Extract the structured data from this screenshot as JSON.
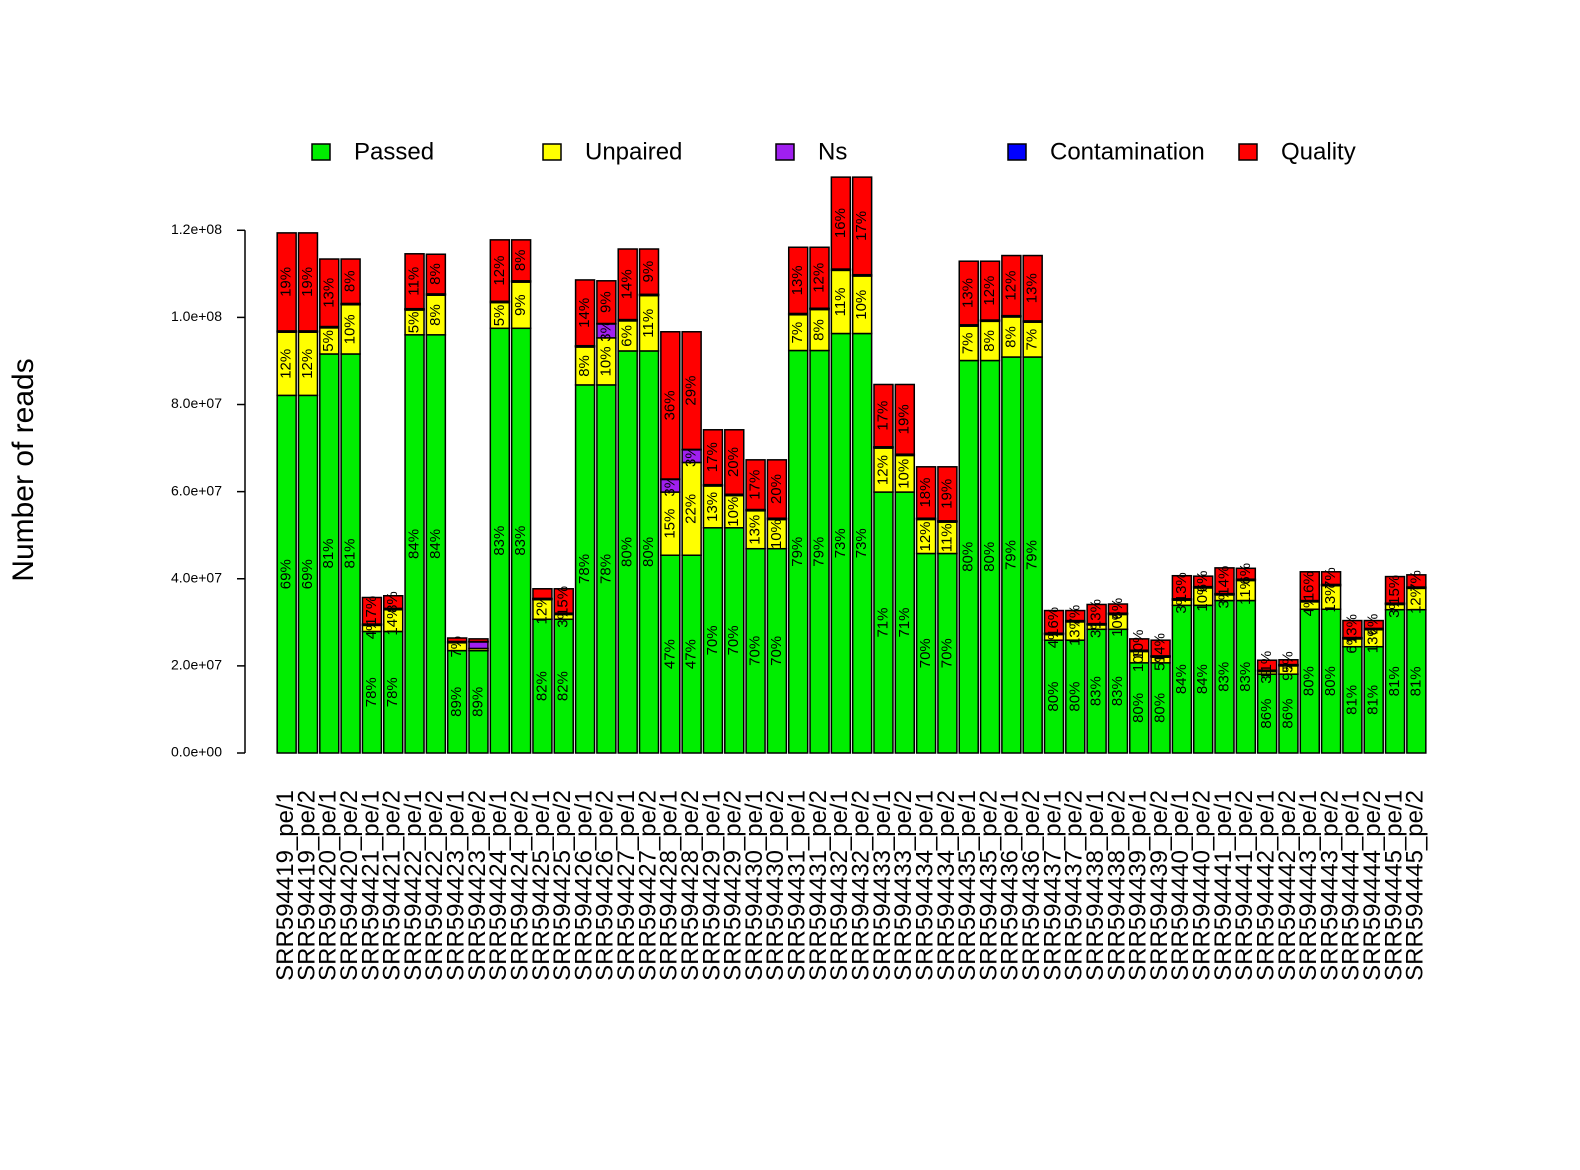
{
  "chart_data": {
    "type": "stacked_bar",
    "y_axis_label": "Number of reads",
    "legend_position": "top",
    "categories": [
      "SRR594419_pe/1",
      "SRR594419_pe/2",
      "SRR594420_pe/1",
      "SRR594420_pe/2",
      "SRR594421_pe/1",
      "SRR594421_pe/2",
      "SRR594422_pe/1",
      "SRR594422_pe/2",
      "SRR594423_pe/1",
      "SRR594423_pe/2",
      "SRR594424_pe/1",
      "SRR594424_pe/2",
      "SRR594425_pe/1",
      "SRR594425_pe/2",
      "SRR594426_pe/1",
      "SRR594426_pe/2",
      "SRR594427_pe/1",
      "SRR594427_pe/2",
      "SRR594428_pe/1",
      "SRR594428_pe/2",
      "SRR594429_pe/1",
      "SRR594429_pe/2",
      "SRR594430_pe/1",
      "SRR594430_pe/2",
      "SRR594431_pe/1",
      "SRR594431_pe/2",
      "SRR594432_pe/1",
      "SRR594432_pe/2",
      "SRR594433_pe/1",
      "SRR594433_pe/2",
      "SRR594434_pe/1",
      "SRR594434_pe/2",
      "SRR594435_pe/1",
      "SRR594435_pe/2",
      "SRR594436_pe/1",
      "SRR594436_pe/2",
      "SRR594437_pe/1",
      "SRR594437_pe/2",
      "SRR594438_pe/1",
      "SRR594438_pe/2",
      "SRR594439_pe/1",
      "SRR594439_pe/2",
      "SRR594440_pe/1",
      "SRR594440_pe/2",
      "SRR594441_pe/1",
      "SRR594441_pe/2",
      "SRR594442_pe/1",
      "SRR594442_pe/2",
      "SRR594443_pe/1",
      "SRR594443_pe/2",
      "SRR594444_pe/1",
      "SRR594444_pe/2",
      "SRR594445_pe/1",
      "SRR594445_pe/2"
    ],
    "series": [
      {
        "name": "Passed",
        "color": "#00ee00",
        "values": [
          82100000.0,
          82100000.0,
          91600000.0,
          91600000.0,
          27900000.0,
          27900000.0,
          96000000.0,
          96000000.0,
          23500000.0,
          23500000.0,
          97500000.0,
          97500000.0,
          30700000.0,
          30700000.0,
          84500000.0,
          84500000.0,
          92300000.0,
          92300000.0,
          45400000.0,
          45400000.0,
          51700000.0,
          51700000.0,
          46900000.0,
          46900000.0,
          92400000.0,
          92400000.0,
          96300000.0,
          96300000.0,
          59900000.0,
          59900000.0,
          45800000.0,
          45800000.0,
          90100000.0,
          90100000.0,
          90900000.0,
          90900000.0,
          25900000.0,
          25900000.0,
          28400000.0,
          28400000.0,
          20700000.0,
          20700000.0,
          33900000.0,
          33900000.0,
          35000000.0,
          35000000.0,
          18100000.0,
          18100000.0,
          33000000.0,
          33000000.0,
          24400000.0,
          24400000.0,
          32900000.0,
          32900000.0
        ],
        "labels": [
          "69%",
          "69%",
          "81%",
          "81%",
          "78%",
          "78%",
          "84%",
          "84%",
          "89%",
          "89%",
          "83%",
          "83%",
          "82%",
          "82%",
          "78%",
          "78%",
          "80%",
          "80%",
          "47%",
          "47%",
          "70%",
          "70%",
          "70%",
          "70%",
          "79%",
          "79%",
          "73%",
          "73%",
          "71%",
          "71%",
          "70%",
          "70%",
          "80%",
          "80%",
          "79%",
          "79%",
          "80%",
          "80%",
          "83%",
          "83%",
          "80%",
          "80%",
          "84%",
          "84%",
          "83%",
          "83%",
          "86%",
          "86%",
          "80%",
          "80%",
          "81%",
          "81%",
          "81%",
          "81%"
        ]
      },
      {
        "name": "Unpaired",
        "color": "#ffff00",
        "values": [
          14500000.0,
          14500000.0,
          6000000.0,
          11300000.0,
          1400000.0,
          5000000.0,
          5700000.0,
          9100000.0,
          1800000.0,
          500000.0,
          5900000.0,
          10600000.0,
          4500000.0,
          1100000.0,
          8700000.0,
          10800000.0,
          6900000.0,
          12700000.0,
          14500000.0,
          21300000.0,
          9600000.0,
          7400000.0,
          8700000.0,
          6700000.0,
          8200000.0,
          9400000.0,
          14500000.0,
          13200000.0,
          10100000.0,
          8400000.0,
          7800000.0,
          7200000.0,
          7900000.0,
          9000000.0,
          9200000.0,
          8000000.0,
          1300000.0,
          4200000.0,
          1000000.0,
          3400000.0,
          2600000.0,
          1300000.0,
          1200000.0,
          4000000.0,
          1300000.0,
          4600000.0,
          600000.0,
          1900000.0,
          1700000.0,
          5400000.0,
          1800000.0,
          3900000.0,
          1200000.0,
          4900000.0
        ],
        "labels": [
          "12%",
          "12%",
          "5%",
          "10%",
          "4%",
          "14%",
          "5%",
          "8%",
          "7%",
          null,
          "5%",
          "9%",
          "12%",
          "3%",
          "8%",
          "10%",
          "6%",
          "11%",
          "15%",
          "22%",
          "13%",
          "10%",
          "13%",
          "10%",
          "7%",
          "8%",
          "11%",
          "10%",
          "12%",
          "10%",
          "12%",
          "11%",
          "7%",
          "8%",
          "8%",
          "7%",
          "4%",
          "13%",
          "3%",
          "10%",
          "10%",
          "5%",
          "3%",
          "10%",
          "3%",
          "11%",
          "3%",
          "9%",
          "4%",
          "13%",
          "6%",
          "13%",
          "3%",
          "12%"
        ]
      },
      {
        "name": "Ns",
        "color": "#a020f0",
        "values": [
          200000.0,
          200000.0,
          200000.0,
          200000.0,
          200000.0,
          200000.0,
          200000.0,
          200000.0,
          200000.0,
          1500000.0,
          200000.0,
          200000.0,
          200000.0,
          200000.0,
          200000.0,
          3200000.0,
          200000.0,
          200000.0,
          2900000.0,
          2900000.0,
          200000.0,
          200000.0,
          200000.0,
          200000.0,
          200000.0,
          200000.0,
          200000.0,
          200000.0,
          200000.0,
          200000.0,
          200000.0,
          200000.0,
          200000.0,
          200000.0,
          200000.0,
          200000.0,
          200000.0,
          200000.0,
          200000.0,
          200000.0,
          200000.0,
          200000.0,
          200000.0,
          200000.0,
          200000.0,
          200000.0,
          200000.0,
          200000.0,
          200000.0,
          200000.0,
          200000.0,
          200000.0,
          200000.0,
          200000.0
        ],
        "labels": [
          null,
          null,
          null,
          null,
          null,
          null,
          null,
          null,
          null,
          null,
          null,
          null,
          null,
          null,
          null,
          "3%",
          null,
          null,
          "3%",
          "3%",
          null,
          null,
          null,
          null,
          null,
          null,
          null,
          null,
          null,
          null,
          null,
          null,
          null,
          null,
          null,
          null,
          null,
          null,
          null,
          null,
          null,
          null,
          null,
          null,
          null,
          null,
          null,
          null,
          null,
          null,
          null,
          null,
          null,
          null
        ]
      },
      {
        "name": "Contamination",
        "color": "#0000ff",
        "values": [
          100000.0,
          100000.0,
          100000.0,
          100000.0,
          100000.0,
          100000.0,
          100000.0,
          100000.0,
          100000.0,
          100000.0,
          100000.0,
          100000.0,
          100000.0,
          100000.0,
          100000.0,
          100000.0,
          100000.0,
          100000.0,
          100000.0,
          100000.0,
          100000.0,
          100000.0,
          100000.0,
          100000.0,
          100000.0,
          100000.0,
          100000.0,
          100000.0,
          100000.0,
          100000.0,
          100000.0,
          100000.0,
          100000.0,
          100000.0,
          100000.0,
          100000.0,
          100000.0,
          100000.0,
          100000.0,
          100000.0,
          100000.0,
          100000.0,
          100000.0,
          100000.0,
          100000.0,
          100000.0,
          100000.0,
          100000.0,
          100000.0,
          100000.0,
          100000.0,
          100000.0,
          100000.0,
          100000.0
        ]
      },
      {
        "name": "Quality",
        "color": "#ff0000",
        "values": [
          22500000.0,
          22500000.0,
          15500000.0,
          10200000.0,
          6100000.0,
          2900000.0,
          12600000.0,
          9100000.0,
          800000.0,
          600000.0,
          14100000.0,
          9400000.0,
          2200000.0,
          5600000.0,
          15100000.0,
          9800000.0,
          16200000.0,
          10400000.0,
          33800000.0,
          27000000.0,
          12600000.0,
          14800000.0,
          11400000.0,
          13400000.0,
          15200000.0,
          14000000.0,
          21100000.0,
          22400000.0,
          14300000.0,
          16000000.0,
          11800000.0,
          12400000.0,
          14600000.0,
          13500000.0,
          13800000.0,
          15000000.0,
          5200000.0,
          2300000.0,
          4400000.0,
          2100000.0,
          2600000.0,
          3600000.0,
          5300000.0,
          2400000.0,
          5900000.0,
          2500000.0,
          2300000.0,
          1100000.0,
          6600000.0,
          2900000.0,
          3900000.0,
          1800000.0,
          6100000.0,
          2800000.0
        ],
        "labels": [
          "19%",
          "19%",
          "13%",
          "8%",
          "17%",
          "8%",
          "11%",
          "8%",
          null,
          null,
          "12%",
          "8%",
          null,
          "15%",
          "14%",
          "9%",
          "14%",
          "9%",
          "36%",
          "29%",
          "17%",
          "20%",
          "17%",
          "20%",
          "13%",
          "12%",
          "16%",
          "17%",
          "17%",
          "19%",
          "18%",
          "19%",
          "13%",
          "12%",
          "12%",
          "13%",
          "16%",
          "7%",
          "13%",
          "6%",
          "10%",
          "14%",
          "13%",
          "6%",
          "14%",
          "6%",
          "11%",
          "5%",
          "16%",
          "7%",
          "13%",
          "6%",
          "15%",
          "7%"
        ]
      }
    ],
    "ylim": [
      0,
      132000000.0
    ],
    "yticks": [
      {
        "value": 0,
        "label": "0.0e+00"
      },
      {
        "value": 20000000.0,
        "label": "2.0e+07"
      },
      {
        "value": 40000000.0,
        "label": "4.0e+07"
      },
      {
        "value": 60000000.0,
        "label": "6.0e+07"
      },
      {
        "value": 80000000.0,
        "label": "8.0e+07"
      },
      {
        "value": 100000000.0,
        "label": "1.0e+08"
      },
      {
        "value": 120000000.0,
        "label": "1.2e+08"
      }
    ]
  }
}
